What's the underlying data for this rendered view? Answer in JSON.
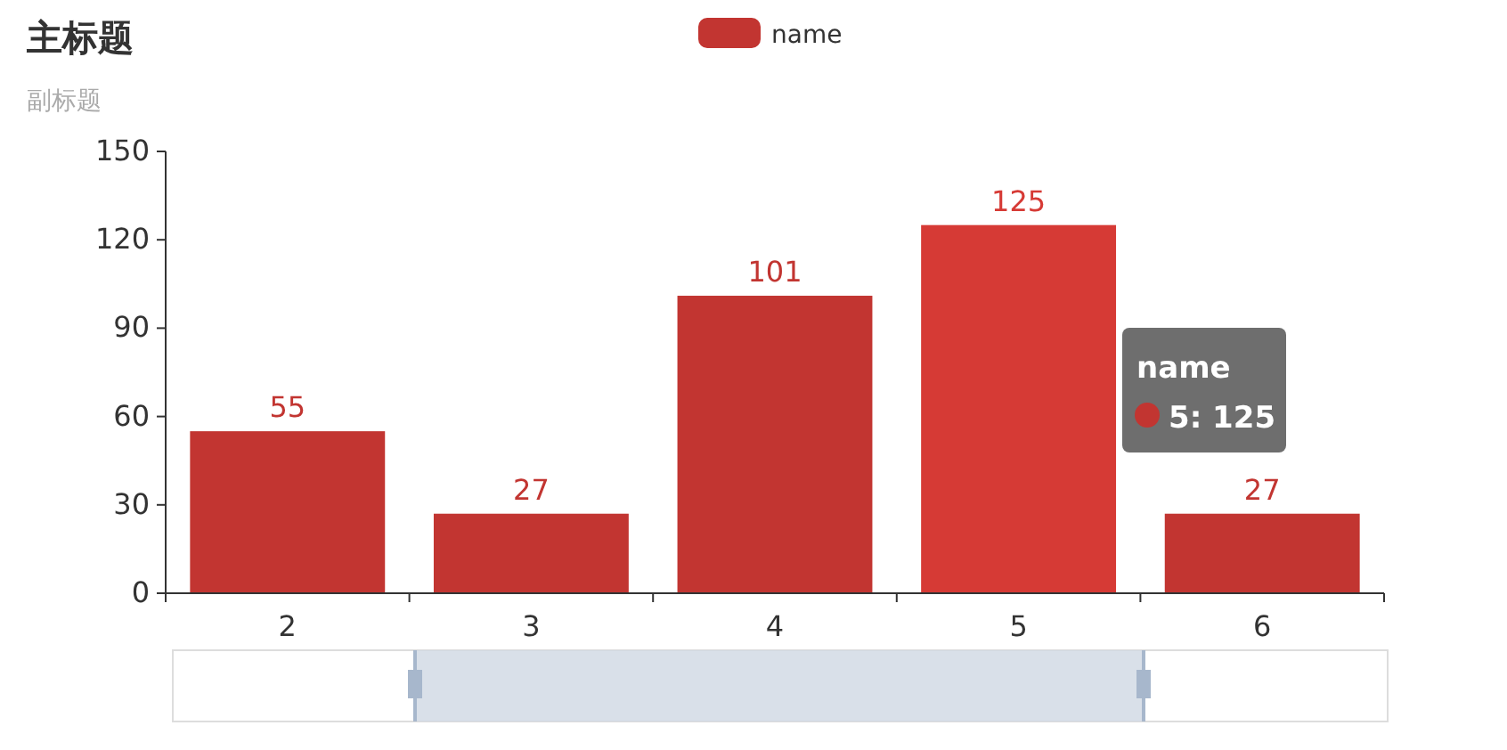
{
  "chart_data": {
    "type": "bar",
    "title": "主标题",
    "subtitle": "副标题",
    "categories": [
      "2",
      "3",
      "4",
      "5",
      "6"
    ],
    "series": [
      {
        "name": "name",
        "color": "#c23531",
        "colors": [
          "#c23531",
          "#c23531",
          "#c23531",
          "#d63a35",
          "#c23531"
        ],
        "values": [
          55,
          27,
          101,
          125,
          27
        ]
      }
    ],
    "ylim": [
      0,
      150
    ],
    "yticks": [
      0,
      30,
      60,
      90,
      120,
      150
    ],
    "data_labels": true,
    "legend": "top",
    "grid": false,
    "annotations": [
      "5: 125"
    ]
  }
}
